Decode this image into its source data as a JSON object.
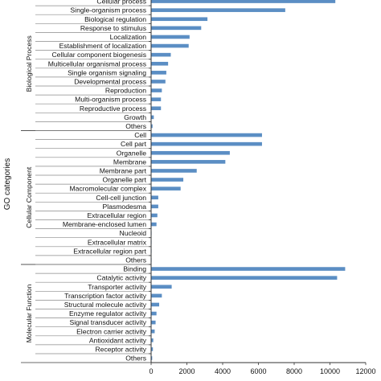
{
  "chart_data": {
    "type": "bar",
    "orientation": "horizontal",
    "ylabel": "GO categories",
    "xlim": [
      0,
      12000
    ],
    "x_ticks": [
      "0",
      "2000",
      "4000",
      "6000",
      "8000",
      "10000",
      "12000"
    ],
    "grid": false,
    "bar_color": "#5b8ec4",
    "groups": [
      {
        "name": "Biological Process",
        "categories": [
          "Cellular process",
          "Single-organism process",
          "Biological regulation",
          "Response to stimulus",
          "Localization",
          "Establishment of localization",
          "Cellular component biogenesis",
          "Multicellular organismal process",
          "Single organism signaling",
          "Developmental process",
          "Reproduction",
          "Multi-organism process",
          "Reproductive process",
          "Growth",
          "Others"
        ],
        "values": [
          10300,
          7500,
          3150,
          2800,
          2150,
          2100,
          1100,
          950,
          850,
          800,
          600,
          550,
          550,
          150,
          80
        ]
      },
      {
        "name": "Cellular Component",
        "categories": [
          "Cell",
          "Cell part",
          "Organelle",
          "Membrane",
          "Membrane part",
          "Organelle part",
          "Macromolecular complex",
          "Cell-cell junction",
          "Plasmodesma",
          "Extracellular region",
          "Membrane-enclosed lumen",
          "Nucleoid",
          "Extracellular matrix",
          "Extracellular region part",
          "Others"
        ],
        "values": [
          6200,
          6200,
          4400,
          4150,
          2550,
          1800,
          1650,
          400,
          400,
          350,
          300,
          20,
          20,
          20,
          10
        ]
      },
      {
        "name": "Molecular Function",
        "categories": [
          "Binding",
          "Catalytic activity",
          "Transporter activity",
          "Transcription factor activity",
          "Structural molecule activity",
          "Enzyme regulator activity",
          "Signal transducer activity",
          "Electron carrier activity",
          "Antioxidant activity",
          "Receptor activity",
          "Others"
        ],
        "values": [
          10850,
          10400,
          1150,
          600,
          450,
          300,
          250,
          200,
          120,
          100,
          60
        ]
      }
    ]
  }
}
